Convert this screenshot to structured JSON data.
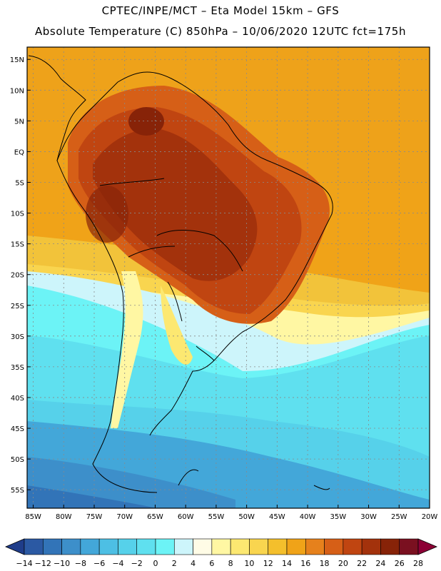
{
  "header": {
    "line1": "CPTEC/INPE/MCT –  Eta Model 15km – GFS",
    "line2": "Absolute Temperature (C) 850hPa – 10/06/2020 12UTC fct=175h"
  },
  "map": {
    "lat_labels": [
      "15N",
      "10N",
      "5N",
      "EQ",
      "5S",
      "10S",
      "15S",
      "20S",
      "25S",
      "30S",
      "35S",
      "40S",
      "45S",
      "50S",
      "55S"
    ],
    "lat_values": [
      15,
      10,
      5,
      0,
      -5,
      -10,
      -15,
      -20,
      -25,
      -30,
      -35,
      -40,
      -45,
      -50,
      -55
    ],
    "lon_labels": [
      "85W",
      "80W",
      "75W",
      "70W",
      "65W",
      "60W",
      "55W",
      "50W",
      "45W",
      "40W",
      "35W",
      "30W",
      "25W",
      "20W"
    ],
    "lon_values": [
      -85,
      -80,
      -75,
      -70,
      -65,
      -60,
      -55,
      -50,
      -45,
      -40,
      -35,
      -30,
      -25,
      -20
    ],
    "lon_range": [
      -86,
      -20
    ],
    "lat_range": [
      -58,
      17
    ],
    "grid": true
  },
  "colorbar": {
    "labels": [
      "-14",
      "-12",
      "-10",
      "-8",
      "-6",
      "-4",
      "-2",
      "0",
      "2",
      "4",
      "6",
      "8",
      "10",
      "12",
      "14",
      "16",
      "18",
      "20",
      "22",
      "24",
      "26",
      "28"
    ],
    "colors": [
      "#1f3d8a",
      "#2b59a3",
      "#3274b8",
      "#3d8fca",
      "#43a7d9",
      "#4dbfe4",
      "#56d1ea",
      "#5fe0ef",
      "#6cf3f6",
      "#cdf5fb",
      "#fffce6",
      "#fff7a3",
      "#fce871",
      "#f9d54f",
      "#f4bf2c",
      "#f0a318",
      "#e6811c",
      "#d65f17",
      "#c04511",
      "#a3320c",
      "#872308",
      "#7a1020",
      "#8c0035"
    ]
  }
}
